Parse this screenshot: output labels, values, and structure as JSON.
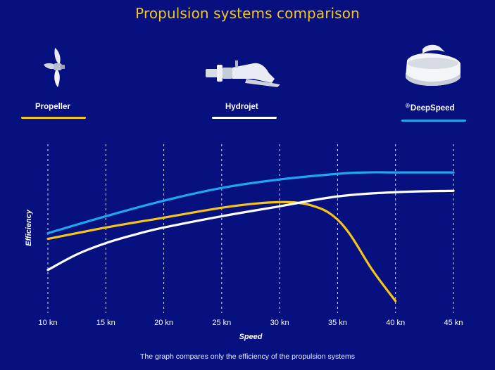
{
  "title": "Propulsion systems comparison",
  "footnote": "The graph compares only the efficiency of the propulsion systems",
  "legend": [
    {
      "label": "Propeller",
      "icon": "propeller-icon",
      "color": "#f5c518"
    },
    {
      "label": "Hydrojet",
      "icon": "hydrojet-icon",
      "color": "#ffffff"
    },
    {
      "label": "DeepSpeed",
      "registered": "®",
      "icon": "deepspeed-icon",
      "color": "#1ea7f0"
    }
  ],
  "chart_data": {
    "type": "line",
    "title": "Propulsion systems comparison",
    "xlabel": "Speed",
    "ylabel": "Efficiency",
    "x_ticks": [
      "10 kn",
      "15 kn",
      "20 kn",
      "25 kn",
      "30 kn",
      "35 kn",
      "40 kn",
      "45 kn"
    ],
    "xlim": [
      10,
      45
    ],
    "ylim": [
      0,
      100
    ],
    "grid": "vertical dashed",
    "y_values_note": "",
    "series": [
      {
        "name": "Propeller",
        "color": "#f5c518",
        "x": [
          10,
          15,
          20,
          25,
          28,
          30,
          31.5,
          33,
          34.5,
          36,
          38,
          40
        ],
        "y": [
          44,
          52,
          59,
          66,
          69,
          70,
          69.6,
          67,
          61,
          48,
          22,
          0
        ]
      },
      {
        "name": "Hydrojet",
        "color": "#ffffff",
        "x": [
          10,
          12.5,
          15,
          17.5,
          20,
          25,
          30,
          35,
          40,
          45
        ],
        "y": [
          22,
          33,
          41,
          47,
          52,
          60,
          67,
          74,
          77,
          78
        ]
      },
      {
        "name": "DeepSpeed",
        "color": "#1ea7f0",
        "x": [
          10,
          15,
          20,
          25,
          30,
          35,
          37.5,
          40,
          45
        ],
        "y": [
          48,
          60,
          71,
          80,
          86,
          90,
          91,
          91,
          91
        ]
      }
    ]
  }
}
